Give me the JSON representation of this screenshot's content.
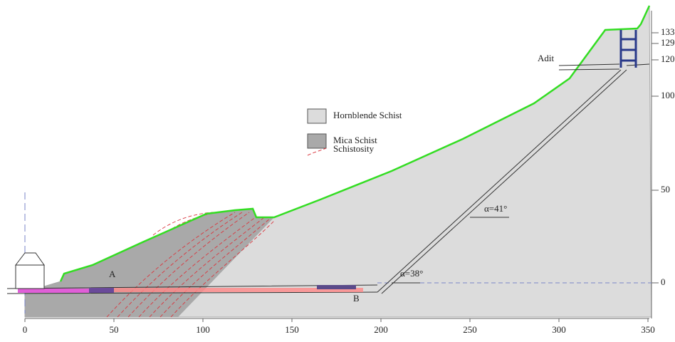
{
  "legend": {
    "items": [
      "Hornblende Schist",
      "Mica Schist",
      "Schistosity"
    ]
  },
  "labels": {
    "adit": "Adit",
    "point_a": "A",
    "point_b": "B",
    "angle_upper": "α=41°",
    "angle_lower": "α=38°"
  },
  "x_axis": {
    "ticks": [
      "0",
      "50",
      "100",
      "150",
      "200",
      "250",
      "300",
      "350"
    ]
  },
  "y_axis": {
    "ticks": [
      "0",
      "50",
      "100",
      "120",
      "129",
      "133"
    ]
  }
}
